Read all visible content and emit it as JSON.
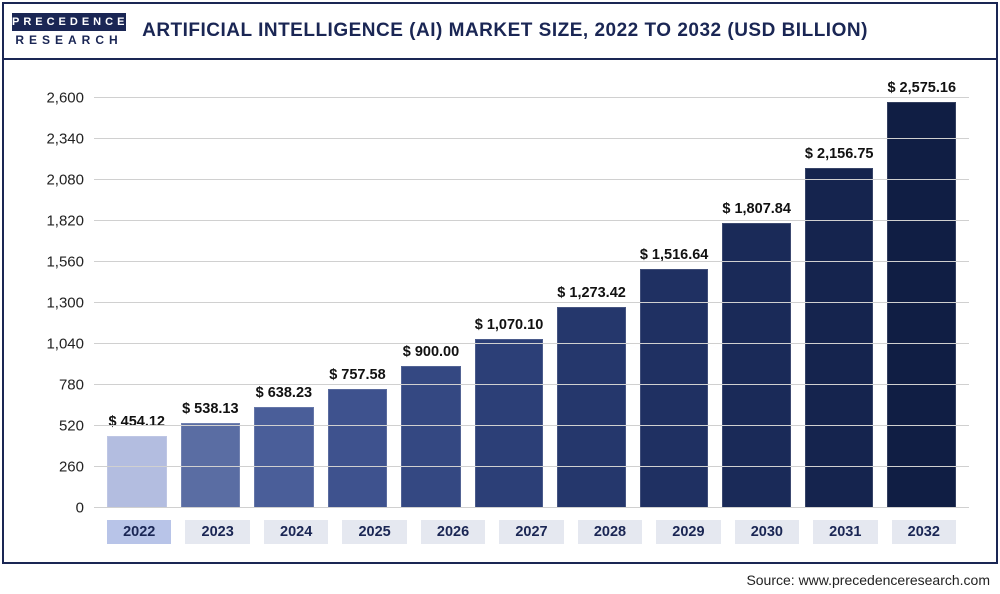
{
  "logo": {
    "top": "PRECEDENCE",
    "bottom": "RESEARCH"
  },
  "title": "ARTIFICIAL INTELLIGENCE (AI) MARKET SIZE, 2022 TO 2032 (USD BILLION)",
  "source": "Source: www.precedenceresearch.com",
  "chart": {
    "type": "bar",
    "ylim_max": 2730,
    "ytick_step": 260,
    "yticks": [
      "0",
      "260",
      "520",
      "780",
      "1,040",
      "1,300",
      "1,560",
      "1,820",
      "2,080",
      "2,340",
      "2,600"
    ],
    "grid_color": "#d0d0d0",
    "background_color": "#ffffff",
    "value_prefix": "$ ",
    "label_fontsize": 15,
    "value_fontsize": 14.5,
    "bars": [
      {
        "year": "2022",
        "value": 454.12,
        "label": "$ 454.12",
        "color": "#b3bde0",
        "highlight": true
      },
      {
        "year": "2023",
        "value": 538.13,
        "label": "$ 538.13",
        "color": "#5a6da3"
      },
      {
        "year": "2024",
        "value": 638.23,
        "label": "$ 638.23",
        "color": "#4a5e99"
      },
      {
        "year": "2025",
        "value": 757.58,
        "label": "$ 757.58",
        "color": "#3e528e"
      },
      {
        "year": "2026",
        "value": 900.0,
        "label": "$ 900.00",
        "color": "#344882"
      },
      {
        "year": "2027",
        "value": 1070.1,
        "label": "$ 1,070.10",
        "color": "#2c3f77"
      },
      {
        "year": "2028",
        "value": 1273.42,
        "label": "$ 1,273.42",
        "color": "#25376c"
      },
      {
        "year": "2029",
        "value": 1516.64,
        "label": "$ 1,516.64",
        "color": "#1f3062"
      },
      {
        "year": "2030",
        "value": 1807.84,
        "label": "$ 1,807.84",
        "color": "#1a2a58"
      },
      {
        "year": "2031",
        "value": 2156.75,
        "label": "$ 2,156.75",
        "color": "#15244e"
      },
      {
        "year": "2032",
        "value": 2575.16,
        "label": "$ 2,575.16",
        "color": "#101e44"
      }
    ]
  }
}
